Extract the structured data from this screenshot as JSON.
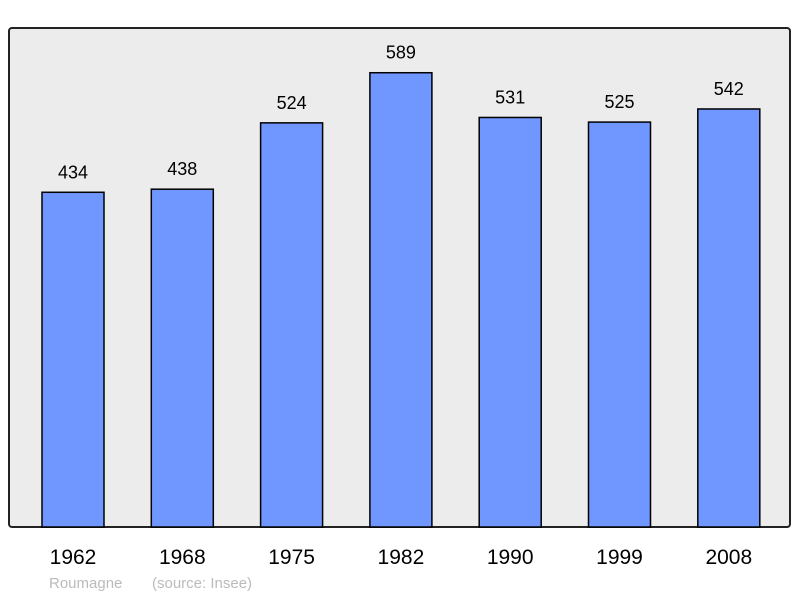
{
  "chart_data": {
    "type": "bar",
    "categories": [
      "1962",
      "1968",
      "1975",
      "1982",
      "1990",
      "1999",
      "2008"
    ],
    "values": [
      434,
      438,
      524,
      589,
      531,
      525,
      542
    ],
    "title": "",
    "xlabel": "",
    "ylabel": "",
    "ylim": [
      0,
      647
    ],
    "grid": false,
    "legend": "none",
    "colors": {
      "bar": "#7096ff",
      "bar_stroke": "#000000",
      "plot_bg": "#ececec"
    }
  },
  "footer": {
    "place": "Roumagne",
    "source": "(source: Insee)"
  }
}
